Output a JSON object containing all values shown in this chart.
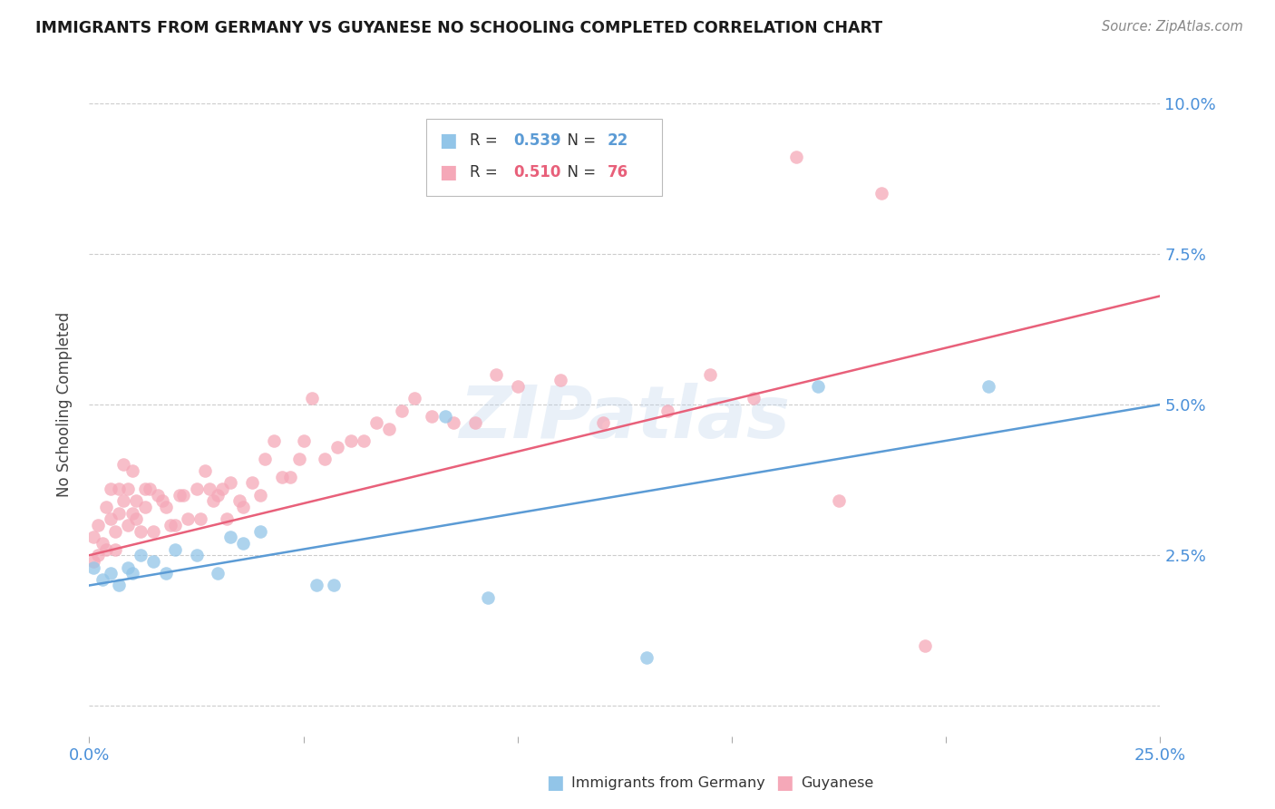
{
  "title": "IMMIGRANTS FROM GERMANY VS GUYANESE NO SCHOOLING COMPLETED CORRELATION CHART",
  "source": "Source: ZipAtlas.com",
  "ylabel": "No Schooling Completed",
  "xlim": [
    0.0,
    0.25
  ],
  "ylim": [
    -0.005,
    0.105
  ],
  "xticks": [
    0.0,
    0.05,
    0.1,
    0.15,
    0.2,
    0.25
  ],
  "xticklabels": [
    "0.0%",
    "",
    "",
    "",
    "",
    "25.0%"
  ],
  "yticks": [
    0.0,
    0.025,
    0.05,
    0.075,
    0.1
  ],
  "yticklabels": [
    "",
    "2.5%",
    "5.0%",
    "7.5%",
    "10.0%"
  ],
  "blue_color": "#92C5E8",
  "pink_color": "#F5A8B8",
  "blue_line_color": "#5B9BD5",
  "pink_line_color": "#E8607A",
  "blue_label": "Immigrants from Germany",
  "pink_label": "Guyanese",
  "blue_R": "0.539",
  "blue_N": "22",
  "pink_R": "0.510",
  "pink_N": "76",
  "watermark": "ZIPatlas",
  "blue_scatter_x": [
    0.001,
    0.003,
    0.005,
    0.007,
    0.009,
    0.01,
    0.012,
    0.015,
    0.018,
    0.02,
    0.025,
    0.03,
    0.033,
    0.036,
    0.04,
    0.053,
    0.057,
    0.083,
    0.093,
    0.13,
    0.17,
    0.21
  ],
  "blue_scatter_y": [
    0.023,
    0.021,
    0.022,
    0.02,
    0.023,
    0.022,
    0.025,
    0.024,
    0.022,
    0.026,
    0.025,
    0.022,
    0.028,
    0.027,
    0.029,
    0.02,
    0.02,
    0.048,
    0.018,
    0.008,
    0.053,
    0.053
  ],
  "pink_scatter_x": [
    0.001,
    0.001,
    0.002,
    0.002,
    0.003,
    0.004,
    0.004,
    0.005,
    0.005,
    0.006,
    0.006,
    0.007,
    0.007,
    0.008,
    0.008,
    0.009,
    0.009,
    0.01,
    0.01,
    0.011,
    0.011,
    0.012,
    0.013,
    0.013,
    0.014,
    0.015,
    0.016,
    0.017,
    0.018,
    0.019,
    0.02,
    0.021,
    0.022,
    0.023,
    0.025,
    0.026,
    0.027,
    0.028,
    0.029,
    0.03,
    0.031,
    0.032,
    0.033,
    0.035,
    0.036,
    0.038,
    0.04,
    0.041,
    0.043,
    0.045,
    0.047,
    0.049,
    0.05,
    0.052,
    0.055,
    0.058,
    0.061,
    0.064,
    0.067,
    0.07,
    0.073,
    0.076,
    0.08,
    0.085,
    0.09,
    0.095,
    0.1,
    0.11,
    0.12,
    0.135,
    0.145,
    0.155,
    0.165,
    0.175,
    0.185,
    0.195
  ],
  "pink_scatter_y": [
    0.024,
    0.028,
    0.025,
    0.03,
    0.027,
    0.026,
    0.033,
    0.031,
    0.036,
    0.026,
    0.029,
    0.032,
    0.036,
    0.034,
    0.04,
    0.03,
    0.036,
    0.032,
    0.039,
    0.031,
    0.034,
    0.029,
    0.033,
    0.036,
    0.036,
    0.029,
    0.035,
    0.034,
    0.033,
    0.03,
    0.03,
    0.035,
    0.035,
    0.031,
    0.036,
    0.031,
    0.039,
    0.036,
    0.034,
    0.035,
    0.036,
    0.031,
    0.037,
    0.034,
    0.033,
    0.037,
    0.035,
    0.041,
    0.044,
    0.038,
    0.038,
    0.041,
    0.044,
    0.051,
    0.041,
    0.043,
    0.044,
    0.044,
    0.047,
    0.046,
    0.049,
    0.051,
    0.048,
    0.047,
    0.047,
    0.055,
    0.053,
    0.054,
    0.047,
    0.049,
    0.055,
    0.051,
    0.091,
    0.034,
    0.085,
    0.01
  ],
  "blue_line_x": [
    0.0,
    0.25
  ],
  "blue_line_y": [
    0.02,
    0.05
  ],
  "pink_line_x": [
    0.0,
    0.25
  ],
  "pink_line_y": [
    0.025,
    0.068
  ]
}
